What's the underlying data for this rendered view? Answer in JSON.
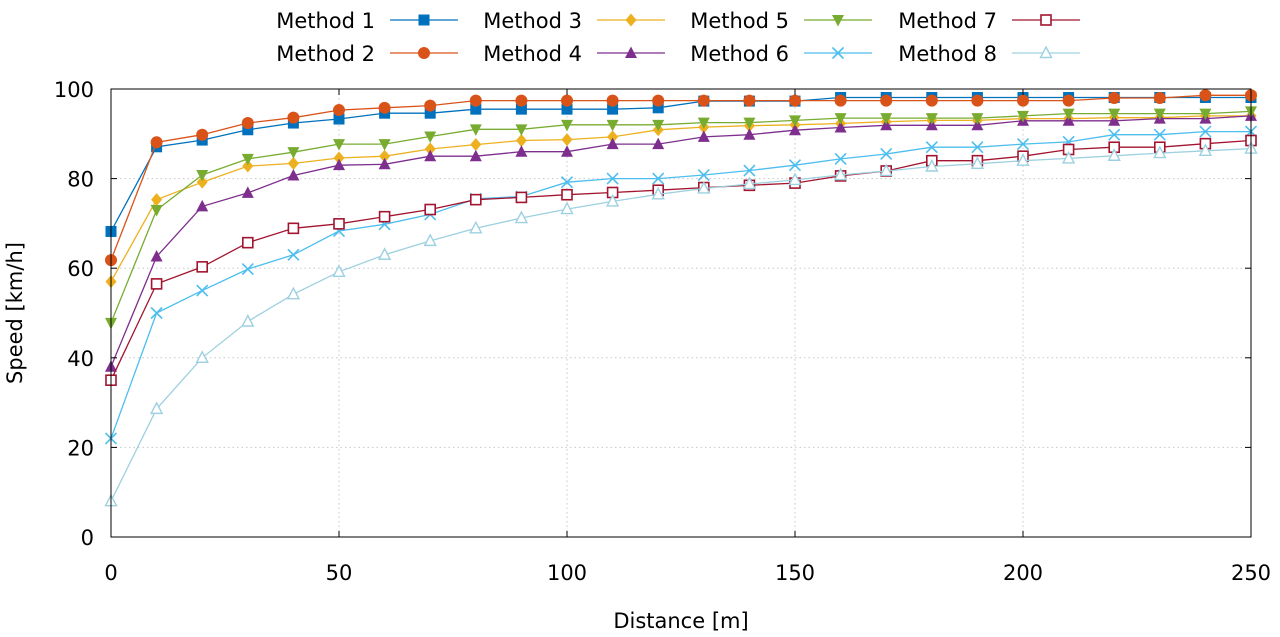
{
  "chart_data": {
    "type": "line",
    "xlabel": "Distance [m]",
    "ylabel": "Speed [km/h]",
    "xlim": [
      0,
      250
    ],
    "ylim": [
      0,
      100
    ],
    "xticks": [
      0,
      50,
      100,
      150,
      200,
      250
    ],
    "yticks": [
      0,
      20,
      40,
      60,
      80,
      100
    ],
    "grid": true,
    "legend_position": "top",
    "x": [
      0,
      10,
      20,
      30,
      40,
      50,
      60,
      70,
      80,
      90,
      100,
      110,
      120,
      130,
      140,
      150,
      160,
      170,
      180,
      190,
      200,
      210,
      220,
      230,
      240,
      250
    ],
    "series": [
      {
        "name": "Method 1",
        "color": "#0072bd",
        "marker": "filled-square",
        "values": [
          68.2,
          87.1,
          88.6,
          90.9,
          92.4,
          93.3,
          94.6,
          94.6,
          95.5,
          95.5,
          95.5,
          95.5,
          95.8,
          97.3,
          97.3,
          97.3,
          98.1,
          98.1,
          98.1,
          98.1,
          98.1,
          98.1,
          98.1,
          98.1,
          98.1,
          98.1
        ]
      },
      {
        "name": "Method 2",
        "color": "#d95319",
        "marker": "filled-circle",
        "values": [
          61.8,
          88.1,
          89.8,
          92.4,
          93.6,
          95.3,
          95.8,
          96.3,
          97.4,
          97.4,
          97.4,
          97.4,
          97.4,
          97.4,
          97.4,
          97.4,
          97.4,
          97.4,
          97.4,
          97.4,
          97.4,
          97.4,
          98.0,
          98.0,
          98.6,
          98.6
        ]
      },
      {
        "name": "Method 3",
        "color": "#edb120",
        "marker": "filled-diamond",
        "values": [
          57.0,
          75.3,
          79.2,
          82.8,
          83.4,
          84.6,
          85.0,
          86.6,
          87.6,
          88.5,
          88.7,
          89.3,
          90.9,
          91.5,
          91.8,
          92.0,
          92.3,
          92.7,
          93.0,
          93.0,
          93.4,
          93.4,
          93.6,
          93.6,
          94.0,
          94.0
        ]
      },
      {
        "name": "Method 4",
        "color": "#7e2f8e",
        "marker": "filled-triangle-up",
        "values": [
          38.0,
          62.6,
          73.8,
          76.8,
          80.7,
          83.0,
          83.2,
          85.0,
          85.0,
          86.0,
          86.0,
          87.7,
          87.7,
          89.3,
          89.8,
          90.8,
          91.4,
          91.9,
          91.9,
          91.9,
          92.9,
          92.9,
          92.9,
          93.4,
          93.4,
          94.0
        ]
      },
      {
        "name": "Method 5",
        "color": "#77ac30",
        "marker": "filled-triangle-down",
        "values": [
          47.8,
          73.0,
          80.8,
          84.4,
          85.9,
          87.7,
          87.7,
          89.4,
          91.0,
          91.0,
          92.0,
          92.0,
          92.0,
          92.5,
          92.5,
          93.0,
          93.5,
          93.5,
          93.5,
          93.5,
          94.0,
          94.5,
          94.5,
          94.5,
          94.5,
          95.0
        ]
      },
      {
        "name": "Method 6",
        "color": "#4dbeee",
        "marker": "cross",
        "values": [
          22.0,
          50.0,
          55.0,
          59.8,
          63.0,
          68.3,
          69.8,
          72.0,
          75.5,
          76.0,
          79.2,
          80.0,
          80.0,
          80.8,
          81.8,
          83.0,
          84.4,
          85.5,
          87.0,
          87.0,
          87.7,
          88.2,
          89.8,
          89.8,
          90.5,
          90.5
        ]
      },
      {
        "name": "Method 7",
        "color": "#a2142f",
        "marker": "open-square",
        "values": [
          35.0,
          56.5,
          60.3,
          65.7,
          68.9,
          69.9,
          71.5,
          73.1,
          75.3,
          75.8,
          76.4,
          76.9,
          77.4,
          78.0,
          78.5,
          79.0,
          80.6,
          81.7,
          84.0,
          84.0,
          85.0,
          86.5,
          87.0,
          87.0,
          87.8,
          88.5
        ]
      },
      {
        "name": "Method 8",
        "color": "#9dd0e0",
        "marker": "open-triangle-up",
        "values": [
          8.0,
          28.6,
          40.0,
          48.1,
          54.2,
          59.2,
          63.0,
          66.1,
          68.9,
          71.2,
          73.2,
          74.9,
          76.5,
          77.8,
          78.8,
          79.7,
          80.8,
          81.7,
          82.7,
          83.3,
          84.0,
          84.5,
          85.1,
          85.7,
          86.2,
          86.7
        ]
      }
    ]
  }
}
